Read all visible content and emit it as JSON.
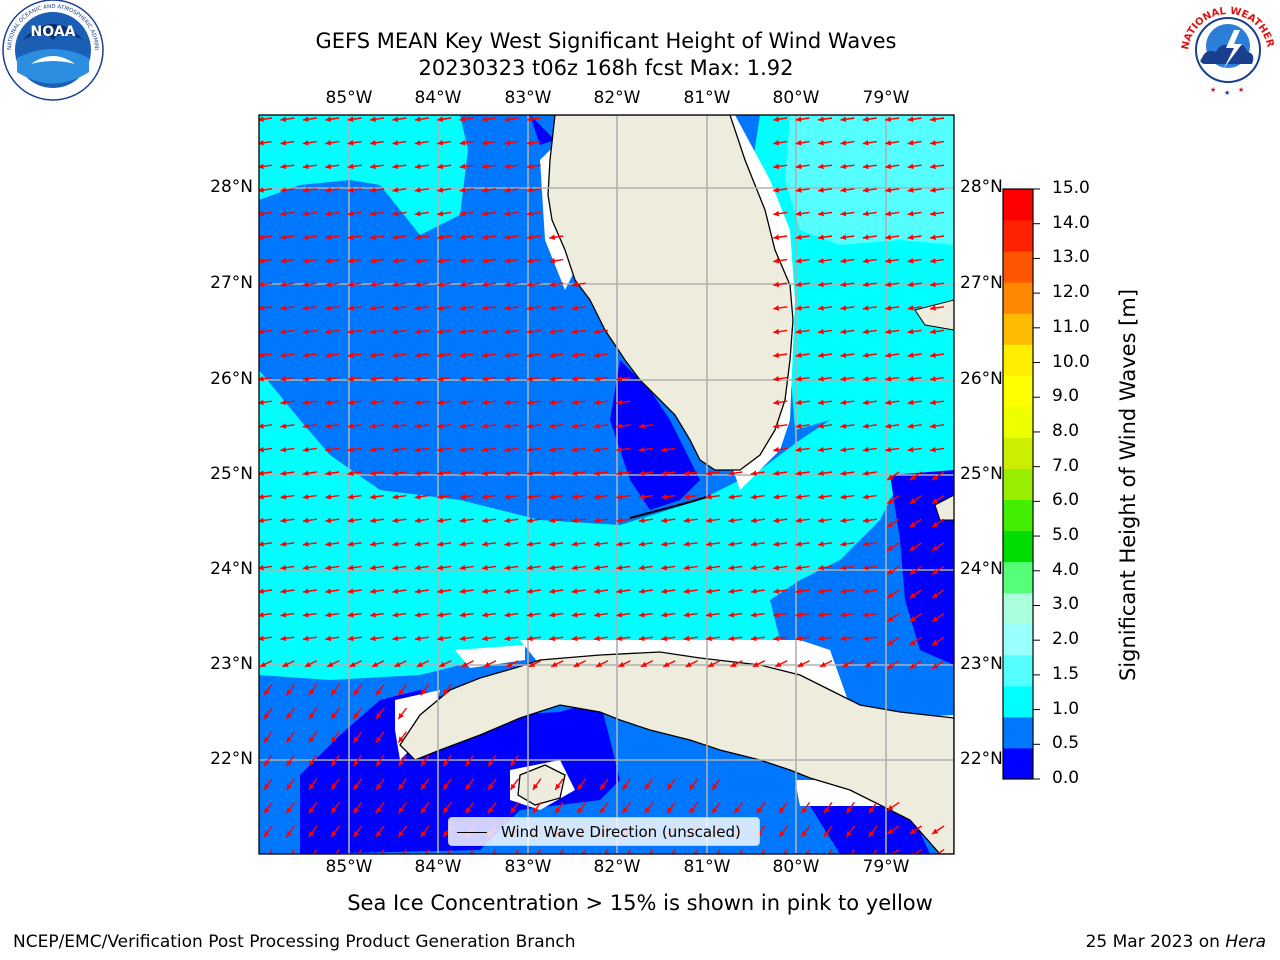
{
  "header": {
    "title_line1": "GEFS MEAN Key West Significant Height of Wind Waves",
    "title_line2": "20230323 t06z 168h fcst   Max: 1.92"
  },
  "logos": {
    "left": {
      "name": "NOAA",
      "text": "NOAA",
      "ring_text": "NATIONAL OCEANIC AND ATMOSPHERIC ADMINISTRATION · U.S. DEPARTMENT OF COMMERCE"
    },
    "right": {
      "name": "National Weather Service",
      "ring_text": "NATIONAL WEATHER SERVICE"
    }
  },
  "map": {
    "lon_labels": [
      "85°W",
      "84°W",
      "83°W",
      "82°W",
      "81°W",
      "80°W",
      "79°W"
    ],
    "lat_labels": [
      "28°N",
      "27°N",
      "26°N",
      "25°N",
      "24°N",
      "23°N",
      "22°N"
    ],
    "legend_label": "Wind Wave Direction (unscaled)",
    "vector_color": "#ff0000",
    "land_color": "#eeecdd",
    "grid_color": "#b0b0b0"
  },
  "colorbar": {
    "label": "Significant Height of Wind Waves [m]",
    "ticks": [
      "15.0",
      "14.0",
      "13.0",
      "12.0",
      "11.0",
      "10.0",
      "9.0",
      "8.0",
      "7.0",
      "6.0",
      "5.0",
      "4.0",
      "3.0",
      "2.0",
      "1.5",
      "1.0",
      "0.5",
      "0.0"
    ],
    "colors": [
      "#0000ff",
      "#0077ff",
      "#00ffff",
      "#55ffff",
      "#99ffff",
      "#aaffdd",
      "#55ff77",
      "#00dd00",
      "#44ee00",
      "#99ee00",
      "#ccee00",
      "#eeff00",
      "#ffff00",
      "#ffee00",
      "#ffbb00",
      "#ff8800",
      "#ff5500",
      "#ff2200",
      "#ff0000"
    ]
  },
  "note": "Sea Ice Concentration > 15% is shown in pink to yellow",
  "footer": {
    "left": "NCEP/EMC/Verification Post Processing Product Generation Branch",
    "right_date": "25 Mar 2023 on ",
    "right_host": "Hera"
  }
}
